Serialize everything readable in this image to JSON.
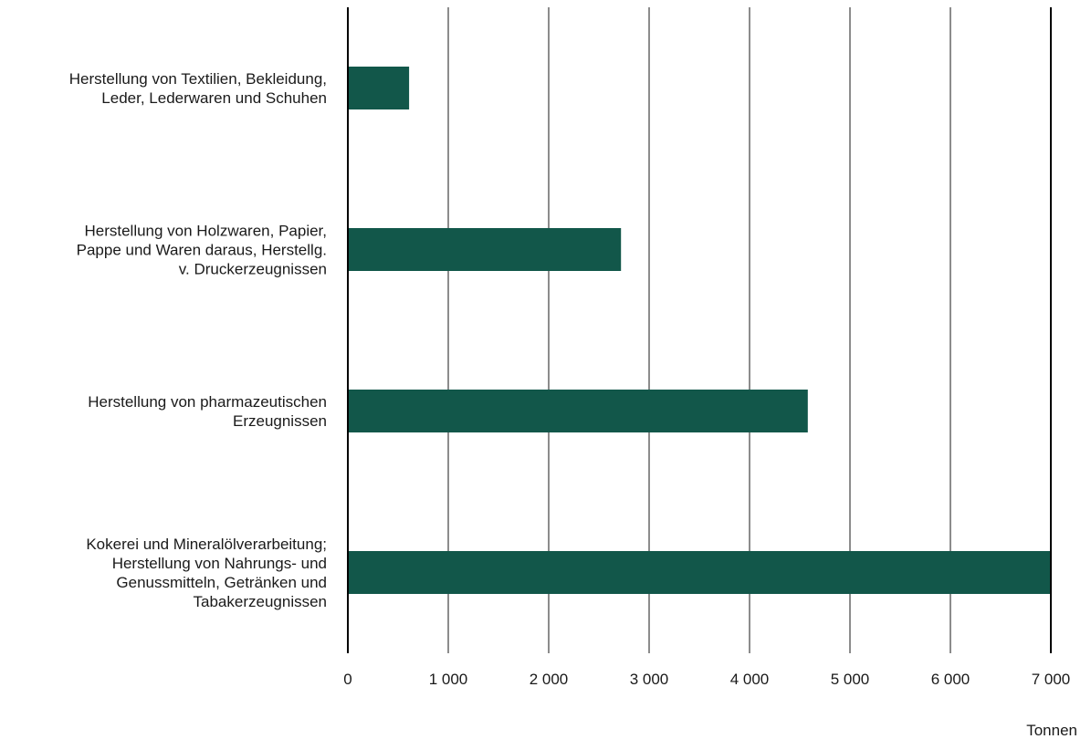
{
  "chart_data": {
    "type": "bar",
    "orientation": "horizontal",
    "categories": [
      [
        "Herstellung von Textilien, Bekleidung,",
        "Leder, Lederwaren und Schuhen"
      ],
      [
        "Herstellung von Holzwaren, Papier,",
        "Pappe und Waren daraus, Herstellg.",
        "v. Druckerzeugnissen"
      ],
      [
        "Herstellung von pharmazeutischen",
        "Erzeugnissen"
      ],
      [
        "Kokerei und Mineralölverarbeitung;",
        "Herstellung von Nahrungs- und",
        "Genussmitteln, Getränken und",
        "Tabakerzeugnissen"
      ]
    ],
    "values": [
      610,
      2720,
      4580,
      7000
    ],
    "xlim": [
      0,
      7000
    ],
    "xticks": [
      0,
      1000,
      2000,
      3000,
      4000,
      5000,
      6000,
      7000
    ],
    "tick_labels": [
      "0",
      "1 000",
      "2 000",
      "3 000",
      "4 000",
      "5 000",
      "6 000",
      "7 000"
    ],
    "unit": "Tonnen",
    "grid": true,
    "bar_color": "#12574A",
    "grid_color": "#8c8c8c",
    "axis_color": "#000000"
  }
}
